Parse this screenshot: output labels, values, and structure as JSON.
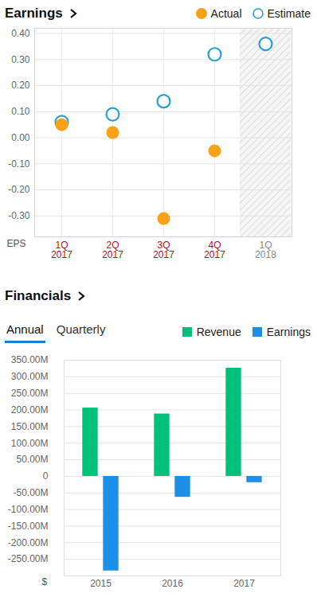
{
  "chart_data": [
    {
      "type": "scatter",
      "title": "Earnings",
      "categories": [
        "1Q 2017",
        "2Q 2017",
        "3Q 2017",
        "4Q 2017",
        "1Q 2018"
      ],
      "series": [
        {
          "name": "Actual",
          "color": "#f9a11b",
          "marker": "circle",
          "values": [
            0.05,
            0.02,
            -0.31,
            -0.05,
            null
          ]
        },
        {
          "name": "Estimate",
          "color": "#2a9fd8",
          "marker": "open_circle",
          "values": [
            0.06,
            0.09,
            0.14,
            0.32,
            0.36
          ]
        }
      ],
      "xlabel": "EPS",
      "ylim": [
        -0.38,
        0.42
      ],
      "yticks": [
        {
          "value": 0.4,
          "label": "0.40"
        },
        {
          "value": 0.3,
          "label": "0.30"
        },
        {
          "value": 0.2,
          "label": "0.20"
        },
        {
          "value": 0.1,
          "label": "0.10"
        },
        {
          "value": 0,
          "label": "0.00"
        },
        {
          "value": -0.1,
          "label": "-0.10"
        },
        {
          "value": -0.2,
          "label": "-0.20"
        },
        {
          "value": -0.3,
          "label": "-0.30"
        }
      ],
      "grid": true,
      "legend": "top-right"
    },
    {
      "type": "bar",
      "title": "Financials",
      "tabs": [
        "Annual",
        "Quarterly"
      ],
      "selected_tab": "Annual",
      "categories": [
        "2015",
        "2016",
        "2017"
      ],
      "series": [
        {
          "name": "Revenue",
          "color": "#00c07a",
          "values": [
            206,
            188,
            326
          ]
        },
        {
          "name": "Earnings",
          "color": "#1e8fe8",
          "values": [
            -285,
            -63,
            -19
          ]
        }
      ],
      "xlabel": "$",
      "ylim": [
        -300,
        350
      ],
      "yticks": [
        {
          "value": 350,
          "label": "350.00M"
        },
        {
          "value": 300,
          "label": "300.00M"
        },
        {
          "value": 250,
          "label": "250.00M"
        },
        {
          "value": 200,
          "label": "200.00M"
        },
        {
          "value": 150,
          "label": "150.00M"
        },
        {
          "value": 100,
          "label": "100.00M"
        },
        {
          "value": 50,
          "label": "50.00M"
        },
        0,
        {
          "value": -50,
          "label": "-50.00M"
        },
        {
          "value": -100,
          "label": "-100.00M"
        },
        {
          "value": -150,
          "label": "-150.00M"
        },
        {
          "value": -200,
          "label": "-200.00M"
        },
        {
          "value": -250,
          "label": "-250.00M"
        }
      ],
      "grid": true,
      "legend": "top-right"
    }
  ]
}
